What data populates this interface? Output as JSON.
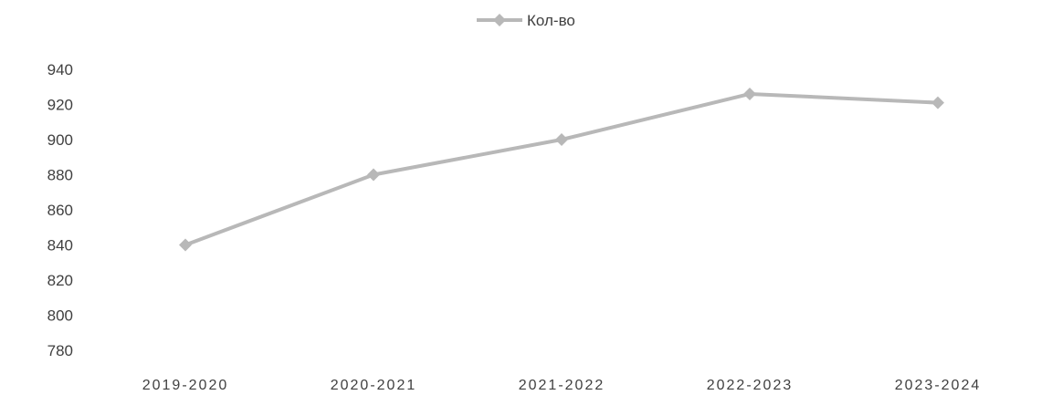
{
  "chart_data": {
    "type": "line",
    "title": "",
    "xlabel": "",
    "ylabel": "",
    "categories": [
      "2019-2020",
      "2020-2021",
      "2021-2022",
      "2022-2023",
      "2023-2024"
    ],
    "series": [
      {
        "name": "Кол-во",
        "values": [
          840,
          880,
          900,
          926,
          921
        ],
        "color": "#b8b8b8"
      }
    ],
    "ylim": [
      780,
      940
    ],
    "yticks": [
      780,
      800,
      820,
      840,
      860,
      880,
      900,
      920,
      940
    ],
    "grid": false,
    "legend": "top-center",
    "marker": "diamond"
  }
}
